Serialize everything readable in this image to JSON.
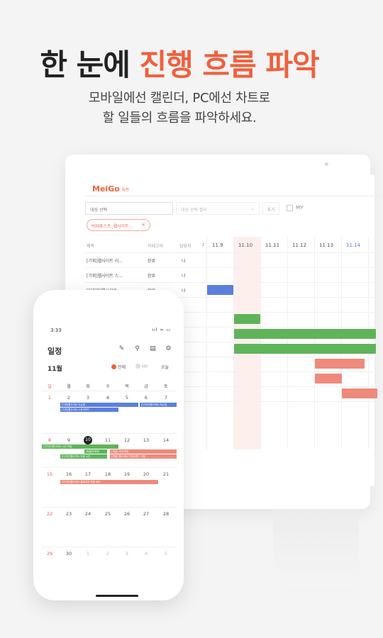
{
  "headline": {
    "plain": "한 눈에 ",
    "accent": "진행 흐름 파악"
  },
  "subline": [
    "모바일에선 캘린더, PC에선 차트로",
    "할 일들의 흐름을 파악하세요."
  ],
  "colors": {
    "accent": "#f0603c",
    "blue": "#5b7fdf",
    "green": "#5fb45a",
    "salmon": "#ee8a7c"
  },
  "desktop": {
    "logo": "MeiGo",
    "logo_sub": "차트",
    "filter_placeholder": "대상 선택",
    "filter2_placeholder": "대상 선택 필터",
    "add_label": "추가",
    "my_label": "MY",
    "chip": "박대표스트_웹사이트...",
    "columns": [
      "제목",
      "카테고리",
      "담당자"
    ],
    "dates": [
      "11.9",
      "11.10",
      "11.11",
      "11.12",
      "11.13",
      "11.14"
    ],
    "rows": [
      {
        "title": "[기획]웹사이트 리...",
        "cat": "완료",
        "who": "나"
      },
      {
        "title": "[기획]웹사이트 스...",
        "cat": "완료",
        "who": "나"
      },
      {
        "title": "[디자인]웹사이트 ...",
        "cat": "완료",
        "who": "나"
      }
    ]
  },
  "phone": {
    "time": "3:33",
    "status_right": "ııl ≈ ▭",
    "title": "일정",
    "month": "11월",
    "toggle_all": "전체",
    "toggle_my": "MY",
    "today": "오늘",
    "weekdays": [
      "일",
      "월",
      "화",
      "수",
      "목",
      "금",
      "토"
    ],
    "weeks": [
      [
        "1",
        "2",
        "3",
        "4",
        "5",
        "6",
        "7"
      ],
      [
        "8",
        "9",
        "10",
        "11",
        "12",
        "13",
        "14"
      ],
      [
        "15",
        "16",
        "17",
        "18",
        "19",
        "20",
        "21"
      ],
      [
        "22",
        "23",
        "24",
        "25",
        "26",
        "27",
        "28"
      ],
      [
        "29",
        "30",
        "1",
        "2",
        "3",
        "4",
        "5"
      ]
    ],
    "events": {
      "e1": "[기획]웹사이트 리뉴얼",
      "e2": "[디자인]웹사이트 리뉴얼",
      "e3": "[기획]웹사이트 스토리보드",
      "e4": "[디자인]웹사이트 시안 작업",
      "e5": "[퍼블]반응형",
      "e6": "[개발] 서버 셋팅",
      "e7": "[디자인]웹사이트 최종 시안",
      "e8": "[개발] 웹사이트 프론트엔드 개발",
      "e9": "[디자인]웹사이트 홈페이지 최종 검토"
    }
  }
}
